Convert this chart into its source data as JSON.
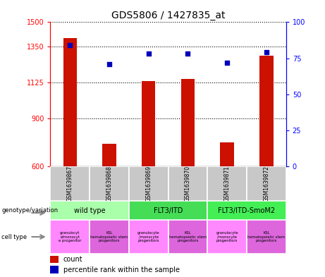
{
  "title": "GDS5806 / 1427835_at",
  "samples": [
    "GSM1639867",
    "GSM1639868",
    "GSM1639869",
    "GSM1639870",
    "GSM1639871",
    "GSM1639872"
  ],
  "counts": [
    1400,
    740,
    1130,
    1145,
    750,
    1290
  ],
  "percentiles": [
    84,
    71,
    78,
    78,
    72,
    79
  ],
  "ylim_left": [
    600,
    1500
  ],
  "ylim_right": [
    0,
    100
  ],
  "yticks_left": [
    600,
    900,
    1125,
    1350,
    1500
  ],
  "yticks_right": [
    0,
    25,
    50,
    75,
    100
  ],
  "genotype_groups": [
    {
      "label": "wild type",
      "span": [
        0,
        2
      ],
      "color": "#AAFFAA"
    },
    {
      "label": "FLT3/ITD",
      "span": [
        2,
        4
      ],
      "color": "#44DD55"
    },
    {
      "label": "FLT3/ITD-SmoM2",
      "span": [
        4,
        6
      ],
      "color": "#44EE55"
    }
  ],
  "cell_labels": [
    "granulocyt\ne/monocyt\ne progenitor",
    "KSL\nhematopoietic stem\nprogenitors",
    "granulocyte\n/monocyte\nprogenitors",
    "KSL\nhematopoietic stem\nprogenitors",
    "granulocyte\n/monocyte\nprogenitors",
    "KSL\nhematopoietic stem\nprogenitors"
  ],
  "cell_colors": [
    "#FF88FF",
    "#DD66DD",
    "#FF88FF",
    "#DD66DD",
    "#FF88FF",
    "#DD66DD"
  ],
  "bar_color": "#CC1100",
  "dot_color": "#0000BB",
  "bar_width": 0.35,
  "sample_bg_color": "#C8C8C8",
  "legend_items": [
    {
      "color": "#CC1100",
      "label": "count"
    },
    {
      "color": "#0000BB",
      "label": "percentile rank within the sample"
    }
  ]
}
